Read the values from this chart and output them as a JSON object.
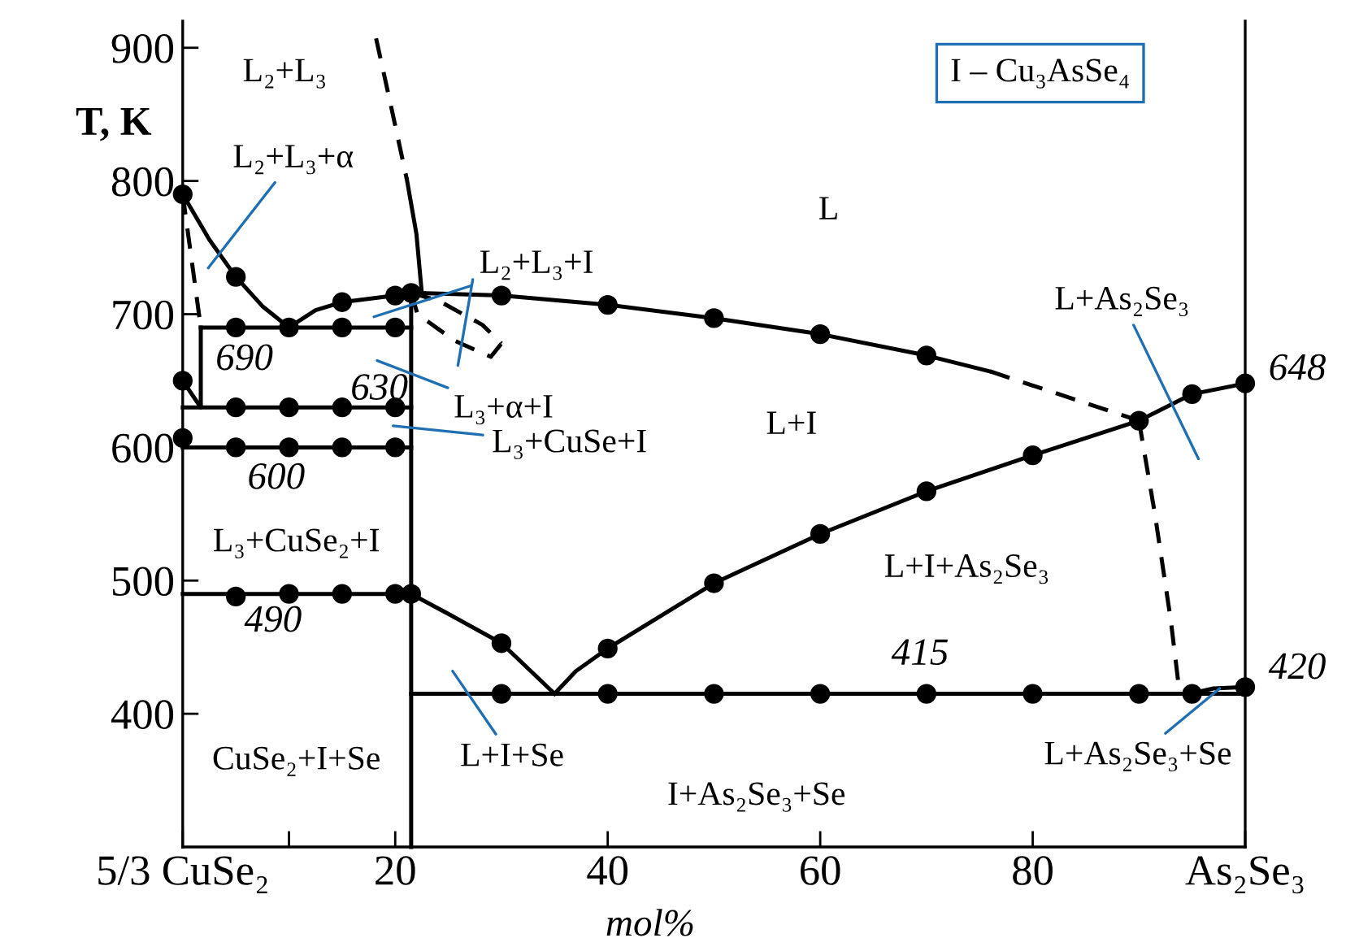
{
  "chart_data": {
    "type": "line",
    "xlabel": "mol%",
    "ylabel": "T, K",
    "xlim": [
      0,
      100
    ],
    "ylim": [
      300,
      920
    ],
    "xticks": [
      {
        "value": 0,
        "label": "5/3 CuSe₂"
      },
      {
        "value": 10,
        "label": null
      },
      20,
      40,
      60,
      80,
      {
        "value": 100,
        "label": "As₂Se₃"
      }
    ],
    "yticks": [
      400,
      500,
      600,
      700,
      800,
      900
    ],
    "grid": false,
    "series": [
      {
        "color": "#000000",
        "line_style": "solid",
        "marker": "none",
        "x": [
          0,
          2.5,
          5,
          7.5,
          10
        ],
        "values": [
          790,
          756,
          728,
          706,
          690
        ]
      },
      {
        "color": "#000000",
        "line_style": "solid",
        "marker": "none",
        "x": [
          10,
          12.5,
          15,
          20,
          21.5
        ],
        "values": [
          690,
          703,
          709,
          714,
          716
        ]
      },
      {
        "color": "#000000",
        "line_style": "solid",
        "marker": "none",
        "x": [
          21.5,
          30,
          40,
          50,
          60,
          70,
          76
        ],
        "values": [
          716,
          714,
          707,
          697,
          685,
          669,
          657
        ]
      },
      {
        "color": "#000000",
        "line_style": "dashed",
        "marker": "none",
        "x": [
          76,
          90
        ],
        "values": [
          657,
          620
        ]
      },
      {
        "color": "#000000",
        "line_style": "dashed",
        "marker": "none",
        "x": [
          0,
          1.7
        ],
        "values": [
          790,
          690
        ]
      },
      {
        "color": "#000000",
        "line_style": "solid",
        "marker": "none",
        "x": [
          0,
          1.7,
          1.7
        ],
        "values": [
          650,
          630,
          690
        ]
      },
      {
        "color": "#000000",
        "line_style": "solid",
        "marker": "none",
        "x": [
          1.7,
          21.5
        ],
        "values": [
          690,
          690
        ]
      },
      {
        "color": "#000000",
        "line_style": "solid",
        "marker": "none",
        "x": [
          0,
          21.5
        ],
        "values": [
          630,
          630
        ]
      },
      {
        "color": "#000000",
        "line_style": "solid",
        "marker": "none",
        "x": [
          0,
          21.5
        ],
        "values": [
          600,
          600
        ]
      },
      {
        "color": "#000000",
        "line_style": "solid",
        "marker": "none",
        "x": [
          0,
          21.5
        ],
        "values": [
          490,
          490
        ]
      },
      {
        "color": "#000000",
        "line_style": "solid",
        "marker": "none",
        "x": [
          21.5,
          21.5
        ],
        "values": [
          716,
          300
        ]
      },
      {
        "color": "#000000",
        "line_style": "solid",
        "marker": "none",
        "x": [
          21.5,
          25,
          30,
          35
        ],
        "values": [
          490,
          475,
          453,
          415
        ]
      },
      {
        "color": "#000000",
        "line_style": "solid",
        "marker": "none",
        "x": [
          35,
          37,
          40,
          50,
          60,
          70,
          80,
          90,
          95,
          100
        ],
        "values": [
          415,
          432,
          449,
          498,
          535,
          567,
          594,
          620,
          640,
          648
        ]
      },
      {
        "color": "#000000",
        "line_style": "dashed",
        "marker": "none",
        "x": [
          90,
          91.5,
          93,
          93.8
        ],
        "values": [
          620,
          550,
          470,
          417
        ]
      },
      {
        "color": "#000000",
        "line_style": "solid",
        "marker": "none",
        "x": [
          21.5,
          100
        ],
        "values": [
          415,
          415
        ]
      },
      {
        "color": "#000000",
        "line_style": "solid",
        "marker": "none",
        "x": [
          94.8,
          97,
          100
        ],
        "values": [
          415,
          419,
          420
        ]
      },
      {
        "color": "#000000",
        "line_style": "dashed",
        "marker": "none",
        "x": [
          18.2,
          19.5,
          21.1
        ],
        "values": [
          907,
          860,
          801
        ]
      },
      {
        "color": "#000000",
        "line_style": "solid",
        "marker": "none",
        "x": [
          21.1,
          22,
          22.5
        ],
        "values": [
          801,
          760,
          716
        ]
      },
      {
        "color": "#000000",
        "line_style": "dashed",
        "marker": "none",
        "x": [
          21.5,
          24.1,
          28.2,
          30
        ],
        "values": [
          716,
          710,
          692,
          678
        ]
      },
      {
        "color": "#000000",
        "line_style": "dashed",
        "marker": "none",
        "x": [
          21.5,
          22.1,
          25.6,
          29,
          30
        ],
        "values": [
          716,
          700,
          680,
          668,
          678
        ]
      },
      {
        "type": "scatter",
        "color": "#000000",
        "marker": "circle",
        "x": [
          0,
          0,
          0,
          5,
          10,
          15,
          20,
          5,
          10,
          15,
          20,
          5,
          10,
          15,
          20,
          5,
          10,
          15,
          20,
          21.5,
          5,
          15,
          20,
          21.5,
          30,
          40,
          50,
          60,
          70,
          90,
          95,
          100,
          30,
          40,
          50,
          60,
          70,
          80,
          30,
          40,
          50,
          60,
          70,
          80,
          90,
          95,
          100
        ],
        "values": [
          790,
          650,
          607,
          690,
          690,
          690,
          690,
          630,
          630,
          630,
          630,
          600,
          600,
          600,
          600,
          488,
          490,
          490,
          490,
          490,
          728,
          709,
          714,
          716,
          714,
          707,
          697,
          685,
          669,
          620,
          640,
          648,
          453,
          449,
          498,
          535,
          567,
          594,
          415,
          415,
          415,
          415,
          415,
          415,
          415,
          415,
          420
        ]
      }
    ],
    "annotations": [
      "L₂+L₃",
      "L₂+L₃+α",
      "L",
      "L₂+L₃+I",
      "L₃+α+I",
      "L₃+CuSe+I",
      "L+I",
      "L+As₂Se₃",
      "L₃+CuSe₂+I",
      "L+I+As₂Se₃",
      "CuSe₂+I+Se",
      "L+I+Se",
      "I+As₂Se₃+Se",
      {
        "text": "L+As₂Se₃+Se",
        "x": 97.6,
        "y": 419
      },
      "690",
      "630",
      "600",
      "490",
      "415",
      "420",
      "648",
      "I – Cu₃AsSe₄"
    ]
  }
}
